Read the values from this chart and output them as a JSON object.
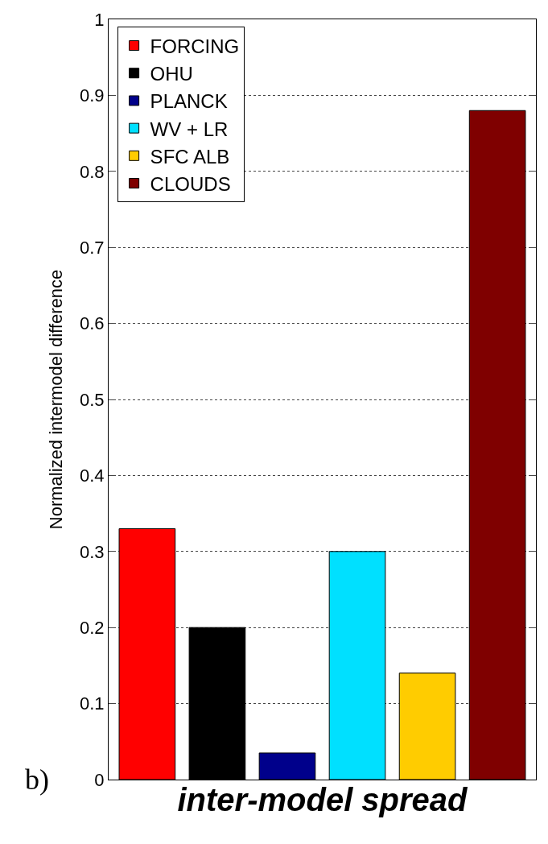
{
  "chart_data": {
    "type": "bar",
    "xlabel": "inter-model spread",
    "ylabel": "Normalized intermodel difference",
    "categories": [
      null,
      null,
      null,
      null,
      null,
      null
    ],
    "series": [
      {
        "name": "FORCING",
        "color": "#ff0000",
        "values": [
          0.33,
          null,
          null,
          null,
          null,
          null
        ]
      },
      {
        "name": "OHU",
        "color": "#000000",
        "values": [
          null,
          0.2,
          null,
          null,
          null,
          null
        ]
      },
      {
        "name": "PLANCK",
        "color": "#00008b",
        "values": [
          null,
          null,
          0.035,
          null,
          null,
          null
        ]
      },
      {
        "name": "WV + LR",
        "color": "#00e0ff",
        "values": [
          null,
          null,
          null,
          0.3,
          null,
          null
        ]
      },
      {
        "name": "SFC ALB",
        "color": "#ffcc00",
        "values": [
          null,
          null,
          null,
          null,
          0.14,
          null
        ]
      },
      {
        "name": "CLOUDS",
        "color": "#7f0000",
        "values": [
          null,
          null,
          null,
          null,
          null,
          0.88
        ]
      }
    ],
    "ylim": [
      0,
      1
    ],
    "yticks": [
      0,
      0.1,
      0.2,
      0.3,
      0.4,
      0.5,
      0.6,
      0.7,
      0.8,
      0.9,
      1
    ],
    "grid": "y",
    "legend": "top left",
    "tick_labels": "y",
    "annotations": [
      "b)"
    ]
  }
}
